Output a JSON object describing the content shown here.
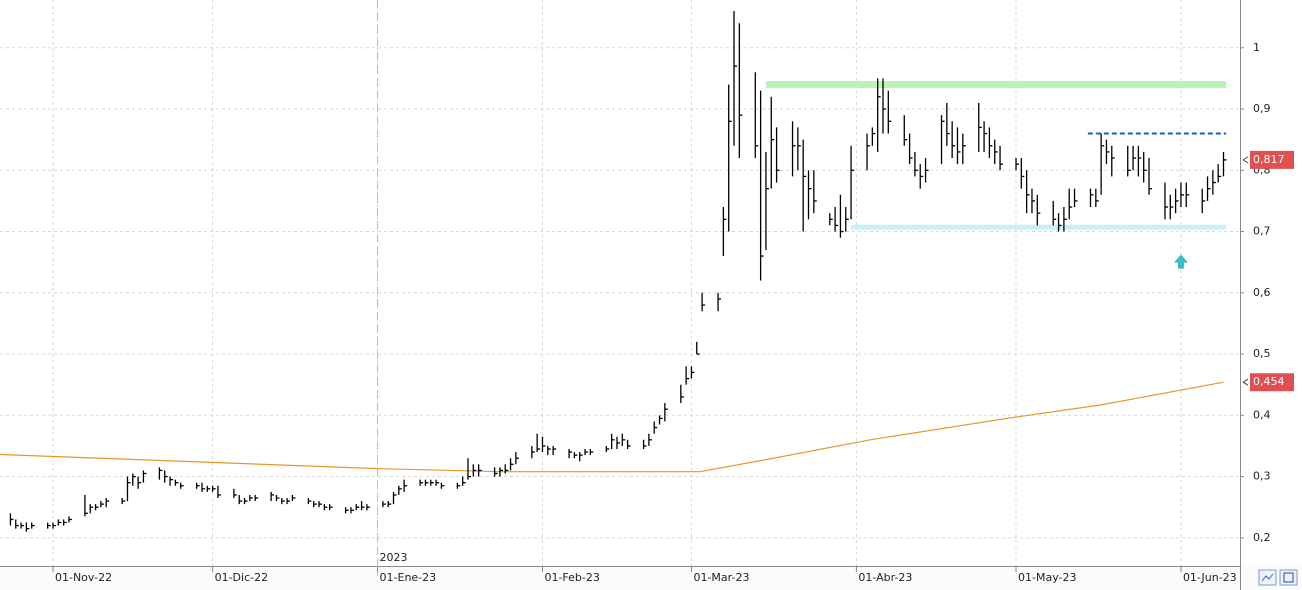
{
  "chart_data": {
    "type": "ohlc",
    "color": "#000000",
    "grid": true,
    "xlim": [
      -9.96,
      223.1
    ],
    "xticks": [
      {
        "value": 0,
        "label": "01-Nov-22"
      },
      {
        "value": 30,
        "label": "01-Dic-22"
      },
      {
        "value": 61,
        "label": "01-Ene-23"
      },
      {
        "value": 92,
        "label": "01-Feb-23"
      },
      {
        "value": 120,
        "label": "01-Mar-23"
      },
      {
        "value": 151,
        "label": "01-Abr-23"
      },
      {
        "value": 181,
        "label": "01-May-23"
      },
      {
        "value": 212,
        "label": "01-Jun-23"
      }
    ],
    "year_marker": {
      "value": 61,
      "label": "2023"
    },
    "ylim": [
      0.154,
      1.078
    ],
    "yticks": [
      1,
      {
        "value": 0.9,
        "label": "0,9"
      },
      {
        "value": 0.8,
        "label": "0,8"
      },
      {
        "value": 0.7,
        "label": "0,7"
      },
      {
        "value": 0.6,
        "label": "0,6"
      },
      {
        "value": 0.5,
        "label": "0,5"
      },
      {
        "value": 0.4,
        "label": "0,4"
      },
      {
        "value": 0.3,
        "label": "0,3"
      },
      {
        "value": 0.2,
        "label": "0,2"
      }
    ],
    "x": [
      -8,
      -7,
      -6,
      -5,
      -4,
      -1,
      0,
      1,
      2,
      3,
      6,
      7,
      8,
      9,
      10,
      13,
      14,
      15,
      16,
      17,
      20,
      21,
      22,
      23,
      24,
      27,
      28,
      29,
      30,
      31,
      34,
      35,
      36,
      37,
      38,
      41,
      42,
      43,
      44,
      45,
      48,
      49,
      50,
      51,
      52,
      55,
      56,
      57,
      58,
      59,
      62,
      63,
      64,
      65,
      66,
      69,
      70,
      71,
      72,
      73,
      76,
      77,
      78,
      79,
      80,
      83,
      84,
      85,
      86,
      87,
      90,
      91,
      92,
      93,
      94,
      97,
      98,
      99,
      100,
      101,
      104,
      105,
      106,
      107,
      108,
      111,
      112,
      113,
      114,
      115,
      118,
      119,
      120,
      121,
      122,
      125,
      126,
      127,
      128,
      129,
      132,
      133,
      134,
      135,
      136,
      139,
      140,
      141,
      142,
      143,
      146,
      147,
      148,
      149,
      150,
      153,
      154,
      155,
      156,
      157,
      160,
      161,
      162,
      163,
      164,
      167,
      168,
      169,
      170,
      171,
      174,
      175,
      176,
      177,
      178,
      181,
      182,
      183,
      184,
      185,
      188,
      189,
      190,
      191,
      192,
      195,
      196,
      197,
      198,
      199,
      202,
      203,
      204,
      205,
      206,
      209,
      210,
      211,
      212,
      213,
      216,
      217,
      218,
      219,
      220
    ],
    "high": [
      0.24,
      0.23,
      0.225,
      0.225,
      0.225,
      0.225,
      0.225,
      0.23,
      0.23,
      0.235,
      0.27,
      0.255,
      0.255,
      0.26,
      0.265,
      0.265,
      0.3,
      0.305,
      0.3,
      0.31,
      0.315,
      0.31,
      0.3,
      0.295,
      0.29,
      0.29,
      0.29,
      0.285,
      0.285,
      0.285,
      0.28,
      0.27,
      0.265,
      0.27,
      0.27,
      0.275,
      0.27,
      0.265,
      0.265,
      0.27,
      0.265,
      0.26,
      0.26,
      0.255,
      0.255,
      0.25,
      0.25,
      0.255,
      0.26,
      0.255,
      0.26,
      0.26,
      0.275,
      0.285,
      0.295,
      0.295,
      0.295,
      0.295,
      0.295,
      0.29,
      0.29,
      0.3,
      0.33,
      0.32,
      0.32,
      0.315,
      0.315,
      0.32,
      0.33,
      0.34,
      0.35,
      0.37,
      0.365,
      0.35,
      0.35,
      0.345,
      0.34,
      0.34,
      0.345,
      0.345,
      0.35,
      0.37,
      0.365,
      0.37,
      0.36,
      0.36,
      0.37,
      0.39,
      0.4,
      0.42,
      0.45,
      0.48,
      0.48,
      0.52,
      0.6,
      0.6,
      0.74,
      0.94,
      1.06,
      1.04,
      0.96,
      0.93,
      0.83,
      0.92,
      0.87,
      0.88,
      0.87,
      0.85,
      0.8,
      0.8,
      0.73,
      0.74,
      0.76,
      0.74,
      0.84,
      0.86,
      0.87,
      0.95,
      0.95,
      0.93,
      0.89,
      0.86,
      0.83,
      0.81,
      0.82,
      0.89,
      0.91,
      0.88,
      0.87,
      0.86,
      0.91,
      0.88,
      0.87,
      0.85,
      0.84,
      0.82,
      0.82,
      0.8,
      0.77,
      0.76,
      0.75,
      0.73,
      0.74,
      0.77,
      0.77,
      0.77,
      0.77,
      0.86,
      0.85,
      0.84,
      0.84,
      0.84,
      0.84,
      0.83,
      0.82,
      0.78,
      0.76,
      0.77,
      0.78,
      0.78,
      0.77,
      0.79,
      0.8,
      0.81,
      0.83
    ],
    "low": [
      0.22,
      0.215,
      0.215,
      0.21,
      0.215,
      0.215,
      0.215,
      0.22,
      0.22,
      0.225,
      0.235,
      0.24,
      0.245,
      0.25,
      0.25,
      0.255,
      0.26,
      0.285,
      0.28,
      0.29,
      0.295,
      0.29,
      0.285,
      0.285,
      0.28,
      0.28,
      0.275,
      0.275,
      0.275,
      0.265,
      0.265,
      0.255,
      0.255,
      0.26,
      0.26,
      0.26,
      0.26,
      0.255,
      0.255,
      0.26,
      0.255,
      0.25,
      0.25,
      0.245,
      0.245,
      0.24,
      0.24,
      0.245,
      0.245,
      0.245,
      0.25,
      0.25,
      0.255,
      0.27,
      0.275,
      0.285,
      0.285,
      0.285,
      0.285,
      0.28,
      0.28,
      0.285,
      0.295,
      0.3,
      0.3,
      0.3,
      0.3,
      0.305,
      0.31,
      0.32,
      0.33,
      0.34,
      0.34,
      0.335,
      0.335,
      0.33,
      0.33,
      0.325,
      0.335,
      0.335,
      0.34,
      0.345,
      0.345,
      0.35,
      0.345,
      0.345,
      0.35,
      0.37,
      0.385,
      0.39,
      0.42,
      0.45,
      0.46,
      0.5,
      0.57,
      0.57,
      0.66,
      0.7,
      0.84,
      0.82,
      0.82,
      0.62,
      0.67,
      0.77,
      0.78,
      0.79,
      0.8,
      0.7,
      0.72,
      0.73,
      0.71,
      0.7,
      0.69,
      0.7,
      0.72,
      0.8,
      0.84,
      0.83,
      0.86,
      0.86,
      0.84,
      0.81,
      0.79,
      0.77,
      0.78,
      0.81,
      0.84,
      0.82,
      0.81,
      0.81,
      0.83,
      0.83,
      0.82,
      0.81,
      0.8,
      0.8,
      0.77,
      0.73,
      0.73,
      0.71,
      0.71,
      0.7,
      0.7,
      0.72,
      0.74,
      0.74,
      0.74,
      0.76,
      0.81,
      0.79,
      0.79,
      0.8,
      0.79,
      0.78,
      0.76,
      0.72,
      0.72,
      0.73,
      0.74,
      0.74,
      0.73,
      0.75,
      0.76,
      0.78,
      0.79
    ],
    "close": [
      0.23,
      0.22,
      0.22,
      0.215,
      0.22,
      0.22,
      0.22,
      0.225,
      0.225,
      0.23,
      0.24,
      0.25,
      0.25,
      0.255,
      0.26,
      0.26,
      0.29,
      0.3,
      0.29,
      0.305,
      0.31,
      0.3,
      0.295,
      0.29,
      0.285,
      0.285,
      0.28,
      0.28,
      0.28,
      0.27,
      0.27,
      0.26,
      0.26,
      0.265,
      0.265,
      0.27,
      0.265,
      0.26,
      0.26,
      0.265,
      0.26,
      0.255,
      0.255,
      0.25,
      0.25,
      0.245,
      0.245,
      0.25,
      0.25,
      0.25,
      0.255,
      0.255,
      0.27,
      0.28,
      0.285,
      0.29,
      0.29,
      0.29,
      0.29,
      0.285,
      0.285,
      0.29,
      0.3,
      0.31,
      0.31,
      0.305,
      0.31,
      0.31,
      0.32,
      0.33,
      0.34,
      0.345,
      0.35,
      0.345,
      0.345,
      0.34,
      0.335,
      0.335,
      0.34,
      0.34,
      0.345,
      0.36,
      0.355,
      0.36,
      0.35,
      0.35,
      0.36,
      0.38,
      0.395,
      0.41,
      0.43,
      0.46,
      0.47,
      0.5,
      0.58,
      0.59,
      0.72,
      0.88,
      0.97,
      0.89,
      0.84,
      0.66,
      0.77,
      0.85,
      0.8,
      0.84,
      0.84,
      0.79,
      0.77,
      0.75,
      0.72,
      0.71,
      0.7,
      0.72,
      0.8,
      0.84,
      0.86,
      0.92,
      0.9,
      0.88,
      0.85,
      0.82,
      0.8,
      0.79,
      0.8,
      0.88,
      0.86,
      0.84,
      0.83,
      0.84,
      0.87,
      0.86,
      0.84,
      0.83,
      0.81,
      0.81,
      0.79,
      0.76,
      0.75,
      0.73,
      0.72,
      0.71,
      0.72,
      0.74,
      0.75,
      0.76,
      0.75,
      0.84,
      0.83,
      0.82,
      0.8,
      0.82,
      0.82,
      0.8,
      0.77,
      0.74,
      0.74,
      0.75,
      0.76,
      0.76,
      0.75,
      0.77,
      0.78,
      0.79,
      0.817
    ],
    "moving_average": {
      "color": "#e8962e",
      "x": [
        -10,
        61,
        84,
        121.6,
        133,
        153.6,
        180,
        197,
        220
      ],
      "values": [
        0.336,
        0.313,
        0.308,
        0.308,
        0.326,
        0.36,
        0.396,
        0.417,
        0.454
      ]
    },
    "levels": [
      {
        "value": 0.94,
        "from": 134,
        "to": 220.5,
        "color": "#b8f3b8",
        "width": 7,
        "dashed": false
      },
      {
        "value": 0.707,
        "from": 150,
        "to": 220.5,
        "color": "#c6f2f4",
        "width": 5,
        "dashed": false
      },
      {
        "value": 0.86,
        "from": 194.5,
        "to": 220.5,
        "color": "#1f5fbf",
        "width": 2,
        "dashed": true
      }
    ],
    "last_labels": [
      {
        "value": 0.817,
        "label": "0,817",
        "color": "#e05050"
      },
      {
        "value": 0.454,
        "label": "0,454",
        "color": "#e05050"
      }
    ],
    "signal": {
      "x": 212,
      "y": 0.65,
      "color": "#33c4c4"
    }
  }
}
